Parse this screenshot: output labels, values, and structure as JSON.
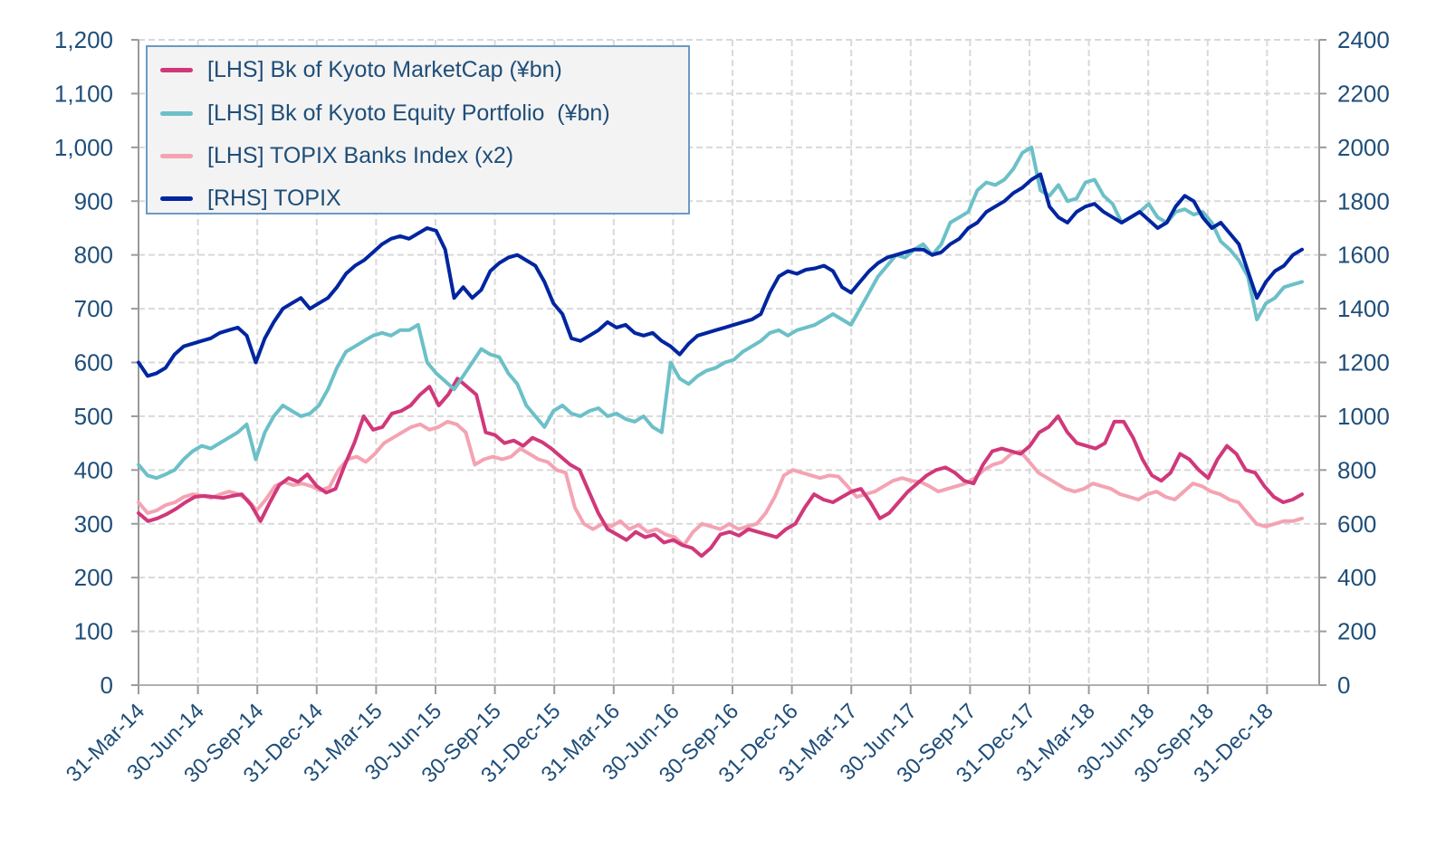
{
  "chart_data": {
    "type": "line",
    "title": "",
    "xlabel": "",
    "ylabel_left": "",
    "ylabel_right": "",
    "ylim_left": [
      0,
      1200
    ],
    "ylim_right": [
      0,
      2400
    ],
    "yticks_left": [
      "0",
      "100",
      "200",
      "300",
      "400",
      "500",
      "600",
      "700",
      "800",
      "900",
      "1,000",
      "1,100",
      "1,200"
    ],
    "yticks_right": [
      "0",
      "200",
      "400",
      "600",
      "800",
      "1000",
      "1200",
      "1400",
      "1600",
      "1800",
      "2000",
      "2200",
      "2400"
    ],
    "xticks": [
      "31-Mar-14",
      "30-Jun-14",
      "30-Sep-14",
      "31-Dec-14",
      "31-Mar-15",
      "30-Jun-15",
      "30-Sep-15",
      "31-Dec-15",
      "31-Mar-16",
      "30-Jun-16",
      "30-Sep-16",
      "31-Dec-16",
      "31-Mar-17",
      "30-Jun-17",
      "30-Sep-17",
      "31-Dec-17",
      "31-Mar-18",
      "30-Jun-18",
      "30-Sep-18",
      "31-Dec-18"
    ],
    "x_unit": "half-months since 31-Mar-14",
    "grid": true,
    "legend_position": "top-left",
    "series": [
      {
        "name": "[LHS] Bk of Kyoto MarketCap (¥bn)",
        "axis": "left",
        "color": "#d0387a",
        "values": [
          320,
          305,
          310,
          318,
          328,
          340,
          350,
          352,
          350,
          348,
          352,
          355,
          335,
          305,
          340,
          372,
          385,
          378,
          392,
          370,
          358,
          365,
          410,
          450,
          500,
          475,
          480,
          505,
          510,
          520,
          540,
          555,
          520,
          540,
          570,
          555,
          540,
          470,
          465,
          450,
          455,
          445,
          460,
          452,
          440,
          425,
          410,
          400,
          360,
          320,
          290,
          280,
          270,
          285,
          275,
          280,
          265,
          270,
          260,
          255,
          240,
          255,
          280,
          285,
          278,
          290,
          285,
          280,
          275,
          290,
          300,
          330,
          355,
          345,
          340,
          350,
          360,
          365,
          340,
          310,
          320,
          340,
          360,
          375,
          390,
          400,
          405,
          395,
          380,
          375,
          410,
          435,
          440,
          435,
          430,
          445,
          470,
          480,
          500,
          470,
          450,
          445,
          440,
          450,
          490,
          490,
          460,
          420,
          390,
          380,
          395,
          430,
          420,
          400,
          385,
          420,
          445,
          430,
          400,
          395,
          370,
          350,
          340,
          345,
          355
        ]
      },
      {
        "name": "[LHS] Bk of Kyoto Equity Portfolio  (¥bn)",
        "axis": "left",
        "color": "#6cc0c8",
        "values": [
          410,
          390,
          385,
          392,
          400,
          420,
          435,
          445,
          440,
          450,
          460,
          470,
          485,
          420,
          470,
          500,
          520,
          510,
          500,
          505,
          520,
          550,
          590,
          620,
          630,
          640,
          650,
          655,
          650,
          660,
          660,
          670,
          600,
          580,
          565,
          550,
          575,
          600,
          625,
          615,
          610,
          580,
          560,
          520,
          500,
          480,
          510,
          520,
          505,
          500,
          510,
          515,
          500,
          505,
          495,
          490,
          500,
          480,
          470,
          600,
          570,
          560,
          575,
          585,
          590,
          600,
          605,
          620,
          630,
          640,
          655,
          660,
          650,
          660,
          665,
          670,
          680,
          690,
          680,
          670,
          700,
          730,
          760,
          780,
          800,
          795,
          810,
          820,
          800,
          820,
          860,
          870,
          880,
          920,
          935,
          930,
          940,
          960,
          990,
          1000,
          920,
          910,
          930,
          900,
          905,
          935,
          940,
          910,
          895,
          860,
          870,
          880,
          895,
          870,
          860,
          880,
          885,
          875,
          880,
          860,
          825,
          810,
          790,
          760,
          680,
          710,
          720,
          740,
          745,
          750
        ]
      },
      {
        "name": "[LHS] TOPIX Banks Index (x2)",
        "axis": "left",
        "color": "#f4a3b3",
        "values": [
          340,
          320,
          325,
          335,
          340,
          350,
          355,
          352,
          348,
          355,
          360,
          355,
          345,
          325,
          345,
          370,
          378,
          372,
          375,
          370,
          362,
          368,
          400,
          420,
          425,
          415,
          430,
          450,
          460,
          470,
          480,
          485,
          475,
          480,
          490,
          485,
          470,
          410,
          420,
          425,
          420,
          425,
          440,
          430,
          420,
          415,
          400,
          395,
          330,
          300,
          290,
          300,
          295,
          305,
          290,
          298,
          285,
          290,
          280,
          275,
          260,
          285,
          300,
          295,
          290,
          300,
          290,
          295,
          300,
          320,
          350,
          390,
          400,
          395,
          390,
          385,
          390,
          388,
          370,
          350,
          355,
          360,
          370,
          380,
          385,
          380,
          378,
          370,
          360,
          365,
          370,
          375,
          385,
          400,
          410,
          415,
          430,
          435,
          415,
          395,
          385,
          375,
          365,
          360,
          365,
          375,
          370,
          365,
          355,
          350,
          345,
          355,
          360,
          350,
          345,
          360,
          375,
          370,
          360,
          355,
          345,
          340,
          320,
          300,
          295,
          300,
          305,
          305,
          310
        ]
      },
      {
        "name": "[RHS] TOPIX",
        "axis": "right",
        "color": "#0025a0",
        "values": [
          1200,
          1150,
          1160,
          1180,
          1230,
          1260,
          1270,
          1280,
          1290,
          1310,
          1320,
          1330,
          1300,
          1200,
          1290,
          1350,
          1400,
          1420,
          1440,
          1400,
          1420,
          1440,
          1480,
          1530,
          1560,
          1580,
          1610,
          1640,
          1660,
          1670,
          1660,
          1680,
          1700,
          1690,
          1620,
          1440,
          1480,
          1440,
          1470,
          1540,
          1570,
          1590,
          1600,
          1580,
          1560,
          1500,
          1420,
          1380,
          1290,
          1280,
          1300,
          1320,
          1350,
          1330,
          1340,
          1310,
          1300,
          1310,
          1280,
          1260,
          1230,
          1270,
          1300,
          1310,
          1320,
          1330,
          1340,
          1350,
          1360,
          1380,
          1460,
          1520,
          1540,
          1530,
          1545,
          1550,
          1560,
          1540,
          1480,
          1460,
          1500,
          1540,
          1570,
          1590,
          1600,
          1610,
          1620,
          1620,
          1600,
          1610,
          1640,
          1660,
          1700,
          1720,
          1760,
          1780,
          1800,
          1830,
          1850,
          1880,
          1900,
          1780,
          1740,
          1720,
          1760,
          1780,
          1790,
          1760,
          1740,
          1720,
          1740,
          1760,
          1730,
          1700,
          1720,
          1780,
          1820,
          1800,
          1740,
          1700,
          1720,
          1680,
          1640,
          1540,
          1440,
          1500,
          1540,
          1560,
          1600,
          1620
        ]
      }
    ]
  },
  "legend": {
    "items": [
      {
        "label": "[LHS] Bk of Kyoto MarketCap (¥bn)",
        "color": "#d0387a"
      },
      {
        "label": "[LHS] Bk of Kyoto Equity Portfolio  (¥bn)",
        "color": "#6cc0c8"
      },
      {
        "label": "[LHS] TOPIX Banks Index (x2)",
        "color": "#f4a3b3"
      },
      {
        "label": "[RHS] TOPIX",
        "color": "#0025a0"
      }
    ]
  }
}
